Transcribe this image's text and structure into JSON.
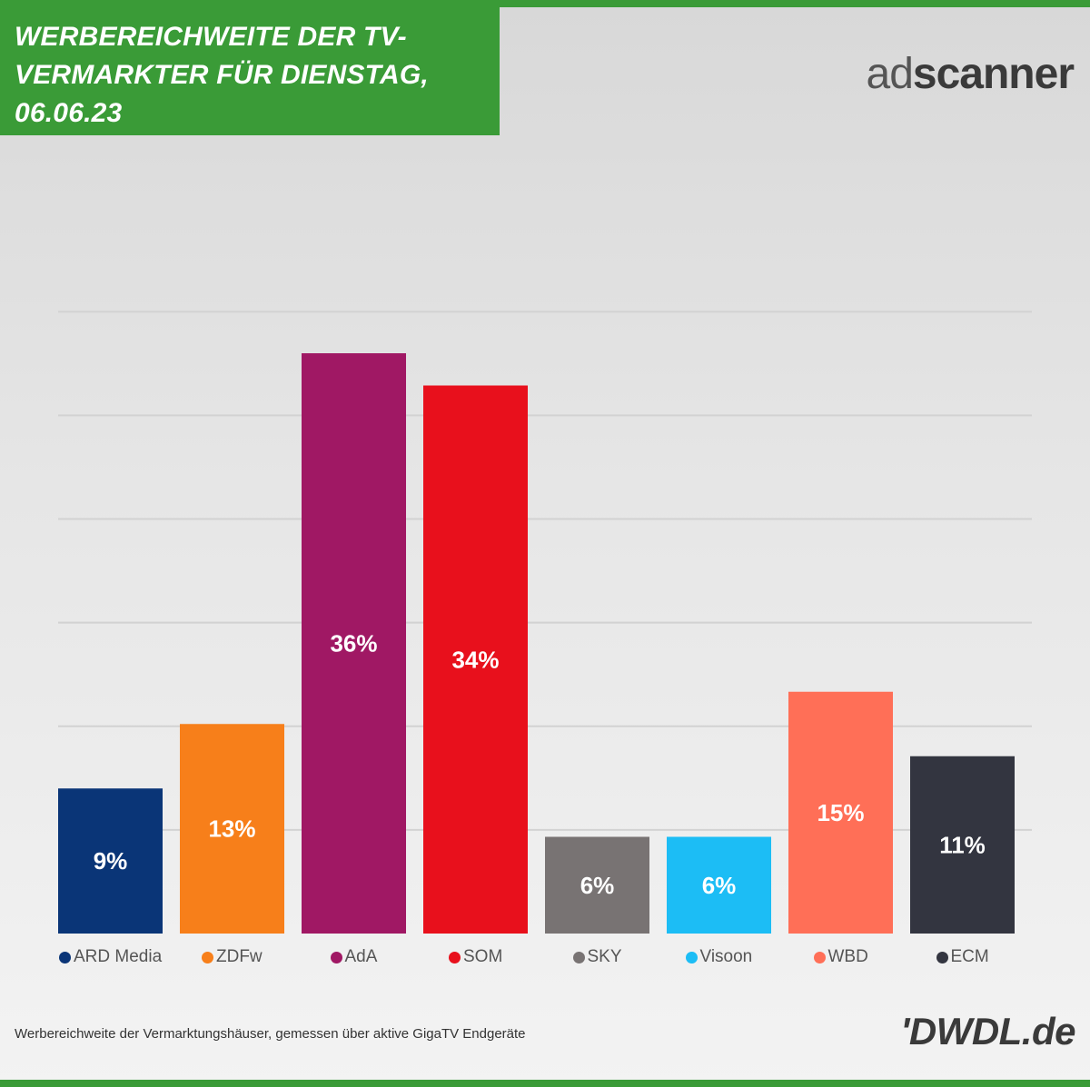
{
  "header": {
    "title": "WERBEREICHWEITE DER TV-VERMARKTER FÜR DIENSTAG, 06.06.23"
  },
  "logos": {
    "adscanner_light": "ad",
    "adscanner_bold": "scanner",
    "dwdl": "'DWDL.de"
  },
  "footnote": "Werbereichweite der Vermarktungshäuser, gemessen über aktive GigaTV Endgeräte",
  "colors": {
    "header_green": "#3a9b37"
  },
  "chart_data": {
    "type": "bar",
    "title": "WERBEREICHWEITE DER TV-VERMARKTER FÜR DIENSTAG, 06.06.23",
    "xlabel": "",
    "ylabel": "",
    "ylim": [
      0,
      42
    ],
    "grid": true,
    "legend_position": "bottom",
    "categories": [
      "ARD Media",
      "ZDFw",
      "AdA",
      "SOM",
      "SKY",
      "Visoon",
      "WBD",
      "ECM"
    ],
    "values": [
      9,
      13,
      36,
      34,
      6,
      6,
      15,
      11
    ],
    "labels": [
      "9%",
      "13%",
      "36%",
      "34%",
      "6%",
      "6%",
      "15%",
      "11%"
    ],
    "colors": [
      "#0a3577",
      "#f77f1a",
      "#a01864",
      "#e8101c",
      "#787373",
      "#1cbdf5",
      "#ff6f57",
      "#333540"
    ]
  }
}
